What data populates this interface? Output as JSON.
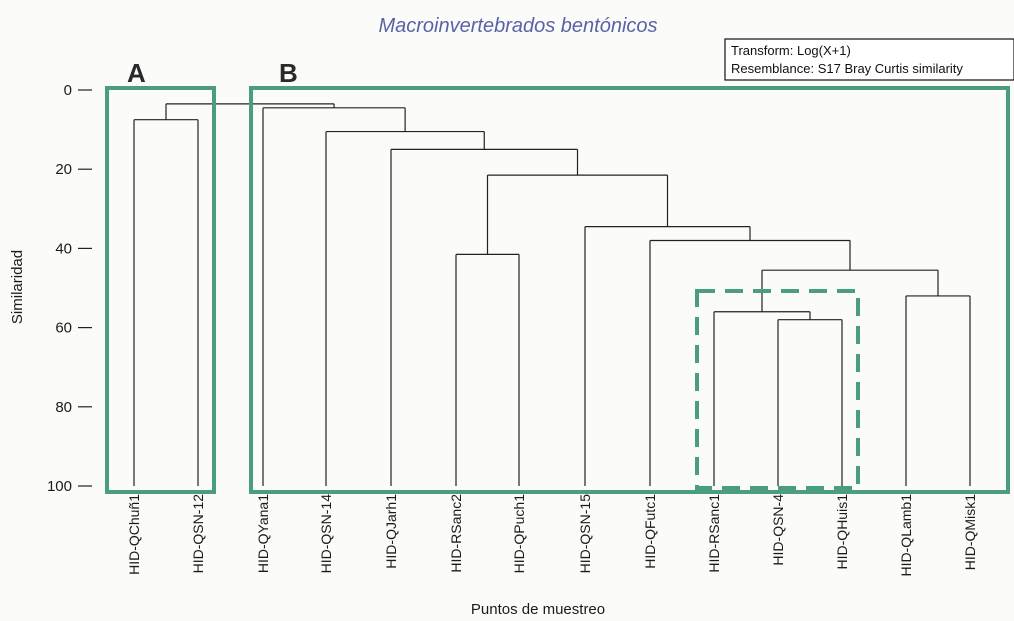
{
  "title": "Macroinvertebrados bentónicos",
  "info_box": {
    "transform": "Transform: Log(X+1)",
    "resemblance": "Resemblance: S17 Bray Curtis similarity"
  },
  "groups": [
    {
      "label": "A",
      "color": "#4a9e7f"
    },
    {
      "label": "B",
      "color": "#4a9e7f"
    }
  ],
  "highlight_color": "#4a9e7f",
  "chart_data": {
    "type": "dendrogram",
    "title": "Macroinvertebrados bentónicos",
    "xlabel": "Puntos de muestreo",
    "ylabel": "Similaridad",
    "ylim": [
      0,
      100
    ],
    "yticks": [
      0,
      20,
      40,
      60,
      80,
      100
    ],
    "leaves": [
      "HID-QChuñ1",
      "HID-QSN-12",
      "HID-QYana1",
      "HID-QSN-14",
      "HID-QJarh1",
      "HID-RSanc2",
      "HID-QPuch1",
      "HID-QSN-15",
      "HID-QFutc1",
      "HID-RSanc1",
      "HID-QSN-4",
      "HID-QHuis1",
      "HID-QLamb1",
      "HID-QMisk1"
    ],
    "merges": [
      {
        "a": "L0",
        "b": "L1",
        "similarity": 7.5
      },
      {
        "a": "L5",
        "b": "L6",
        "similarity": 41.5
      },
      {
        "a": "L10",
        "b": "L11",
        "similarity": 58
      },
      {
        "a": "L12",
        "b": "L13",
        "similarity": 52
      },
      {
        "a": "L9",
        "b": "N2",
        "similarity": 56
      },
      {
        "a": "N4",
        "b": "N3",
        "similarity": 45.5
      },
      {
        "a": "L8",
        "b": "N5",
        "similarity": 38
      },
      {
        "a": "L7",
        "b": "N6",
        "similarity": 34.5
      },
      {
        "a": "N1",
        "b": "N7",
        "similarity": 21.5
      },
      {
        "a": "L4",
        "b": "N8",
        "similarity": 15
      },
      {
        "a": "L3",
        "b": "N9",
        "similarity": 10.5
      },
      {
        "a": "L2",
        "b": "N10",
        "similarity": 4.5
      },
      {
        "a": "N0",
        "b": "N11",
        "similarity": 3.5
      }
    ],
    "group_boxes": [
      {
        "label": "A",
        "leaves": [
          0,
          1
        ]
      },
      {
        "label": "B",
        "leaves": [
          2,
          13
        ]
      }
    ],
    "highlight_box": {
      "leaves": [
        9,
        11
      ],
      "from_similarity": 51
    }
  }
}
